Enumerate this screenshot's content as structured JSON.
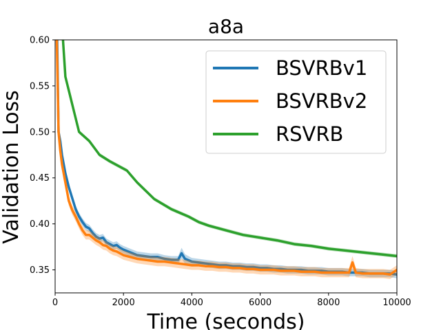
{
  "chart_data": {
    "type": "line",
    "title": "a8a",
    "xlabel": "Time (seconds)",
    "ylabel": "Validation Loss",
    "xlim": [
      0,
      10000
    ],
    "ylim": [
      0.325,
      0.6
    ],
    "xticks": [
      0,
      2000,
      4000,
      6000,
      8000,
      10000
    ],
    "xtick_labels": [
      "0",
      "2000",
      "4000",
      "6000",
      "8000",
      "10000"
    ],
    "yticks": [
      0.35,
      0.4,
      0.45,
      0.5,
      0.55,
      0.6
    ],
    "ytick_labels": [
      "0.35",
      "0.40",
      "0.45",
      "0.50",
      "0.55",
      "0.60"
    ],
    "grid": false,
    "legend_position": "top-right",
    "series": [
      {
        "name": "BSVRBv1",
        "color": "#1f77b4",
        "x": [
          60,
          100,
          150,
          200,
          300,
          400,
          500,
          600,
          700,
          800,
          900,
          1000,
          1100,
          1200,
          1300,
          1400,
          1500,
          1600,
          1700,
          1800,
          1900,
          2000,
          2200,
          2400,
          2600,
          2800,
          3000,
          3200,
          3400,
          3600,
          3700,
          3800,
          4000,
          4200,
          4400,
          4600,
          4800,
          5000,
          5200,
          5400,
          5600,
          5800,
          6000,
          6200,
          6400,
          6600,
          6800,
          7000,
          7200,
          7400,
          7600,
          7800,
          8000,
          8200,
          8400,
          8600,
          8800,
          9000,
          9200,
          9400,
          9600,
          9800,
          10000
        ],
        "y": [
          0.6,
          0.5,
          0.49,
          0.475,
          0.455,
          0.44,
          0.428,
          0.416,
          0.408,
          0.402,
          0.397,
          0.395,
          0.39,
          0.386,
          0.384,
          0.385,
          0.38,
          0.378,
          0.376,
          0.377,
          0.374,
          0.372,
          0.369,
          0.366,
          0.365,
          0.364,
          0.364,
          0.362,
          0.361,
          0.361,
          0.368,
          0.362,
          0.359,
          0.358,
          0.357,
          0.356,
          0.355,
          0.355,
          0.354,
          0.354,
          0.353,
          0.353,
          0.352,
          0.352,
          0.351,
          0.351,
          0.35,
          0.35,
          0.35,
          0.349,
          0.349,
          0.349,
          0.348,
          0.348,
          0.348,
          0.347,
          0.347,
          0.347,
          0.346,
          0.346,
          0.346,
          0.346,
          0.345
        ],
        "band": [
          0.0,
          0.004,
          0.004,
          0.004,
          0.004,
          0.004,
          0.004,
          0.004,
          0.004,
          0.004,
          0.004,
          0.004,
          0.004,
          0.004,
          0.004,
          0.004,
          0.004,
          0.004,
          0.004,
          0.004,
          0.004,
          0.004,
          0.004,
          0.004,
          0.004,
          0.004,
          0.004,
          0.004,
          0.004,
          0.004,
          0.006,
          0.005,
          0.004,
          0.004,
          0.004,
          0.004,
          0.004,
          0.004,
          0.004,
          0.004,
          0.004,
          0.004,
          0.004,
          0.004,
          0.004,
          0.004,
          0.004,
          0.004,
          0.004,
          0.004,
          0.004,
          0.004,
          0.004,
          0.004,
          0.004,
          0.004,
          0.004,
          0.004,
          0.004,
          0.004,
          0.004,
          0.004,
          0.004
        ]
      },
      {
        "name": "BSVRBv2",
        "color": "#ff7f0e",
        "x": [
          50,
          100,
          150,
          200,
          300,
          400,
          500,
          600,
          700,
          800,
          900,
          1000,
          1100,
          1200,
          1300,
          1400,
          1500,
          1600,
          1700,
          1800,
          1900,
          2000,
          2200,
          2400,
          2600,
          2800,
          3000,
          3200,
          3400,
          3600,
          3800,
          4000,
          4200,
          4400,
          4600,
          4800,
          5000,
          5200,
          5400,
          5600,
          5800,
          6000,
          6200,
          6400,
          6600,
          6800,
          7000,
          7200,
          7400,
          7600,
          7800,
          8000,
          8200,
          8400,
          8600,
          8700,
          8800,
          9000,
          9200,
          9400,
          9600,
          9800,
          10000
        ],
        "y": [
          0.6,
          0.5,
          0.48,
          0.465,
          0.445,
          0.425,
          0.415,
          0.408,
          0.4,
          0.393,
          0.388,
          0.388,
          0.385,
          0.382,
          0.38,
          0.377,
          0.376,
          0.373,
          0.371,
          0.37,
          0.368,
          0.366,
          0.364,
          0.362,
          0.361,
          0.36,
          0.359,
          0.359,
          0.358,
          0.357,
          0.356,
          0.355,
          0.355,
          0.354,
          0.354,
          0.353,
          0.353,
          0.352,
          0.352,
          0.351,
          0.351,
          0.35,
          0.35,
          0.35,
          0.349,
          0.349,
          0.349,
          0.348,
          0.348,
          0.348,
          0.347,
          0.347,
          0.347,
          0.347,
          0.347,
          0.358,
          0.347,
          0.346,
          0.346,
          0.346,
          0.346,
          0.345,
          0.35
        ],
        "band": [
          0.0,
          0.005,
          0.005,
          0.005,
          0.005,
          0.005,
          0.005,
          0.005,
          0.005,
          0.005,
          0.005,
          0.005,
          0.005,
          0.005,
          0.005,
          0.005,
          0.005,
          0.005,
          0.005,
          0.005,
          0.005,
          0.005,
          0.005,
          0.005,
          0.005,
          0.005,
          0.005,
          0.005,
          0.005,
          0.005,
          0.005,
          0.005,
          0.005,
          0.005,
          0.005,
          0.005,
          0.005,
          0.005,
          0.005,
          0.005,
          0.005,
          0.005,
          0.005,
          0.005,
          0.005,
          0.005,
          0.005,
          0.005,
          0.005,
          0.005,
          0.005,
          0.005,
          0.005,
          0.005,
          0.005,
          0.007,
          0.005,
          0.005,
          0.005,
          0.005,
          0.005,
          0.005,
          0.005
        ]
      },
      {
        "name": "RSVRB",
        "color": "#2ca02c",
        "x": [
          230,
          300,
          400,
          500,
          600,
          700,
          1000,
          1300,
          1600,
          2100,
          2400,
          2900,
          3400,
          3900,
          4200,
          4500,
          5000,
          5500,
          6000,
          6500,
          7000,
          7500,
          8000,
          8500,
          9000,
          9500,
          10000
        ],
        "y": [
          0.6,
          0.56,
          0.545,
          0.53,
          0.515,
          0.5,
          0.49,
          0.475,
          0.468,
          0.458,
          0.445,
          0.427,
          0.416,
          0.408,
          0.402,
          0.398,
          0.393,
          0.388,
          0.385,
          0.382,
          0.378,
          0.376,
          0.373,
          0.371,
          0.369,
          0.367,
          0.365
        ],
        "band": [
          0.0,
          0.002,
          0.002,
          0.002,
          0.002,
          0.002,
          0.002,
          0.002,
          0.002,
          0.002,
          0.002,
          0.002,
          0.002,
          0.002,
          0.002,
          0.002,
          0.002,
          0.002,
          0.002,
          0.002,
          0.002,
          0.002,
          0.002,
          0.002,
          0.002,
          0.002,
          0.002
        ]
      }
    ]
  }
}
